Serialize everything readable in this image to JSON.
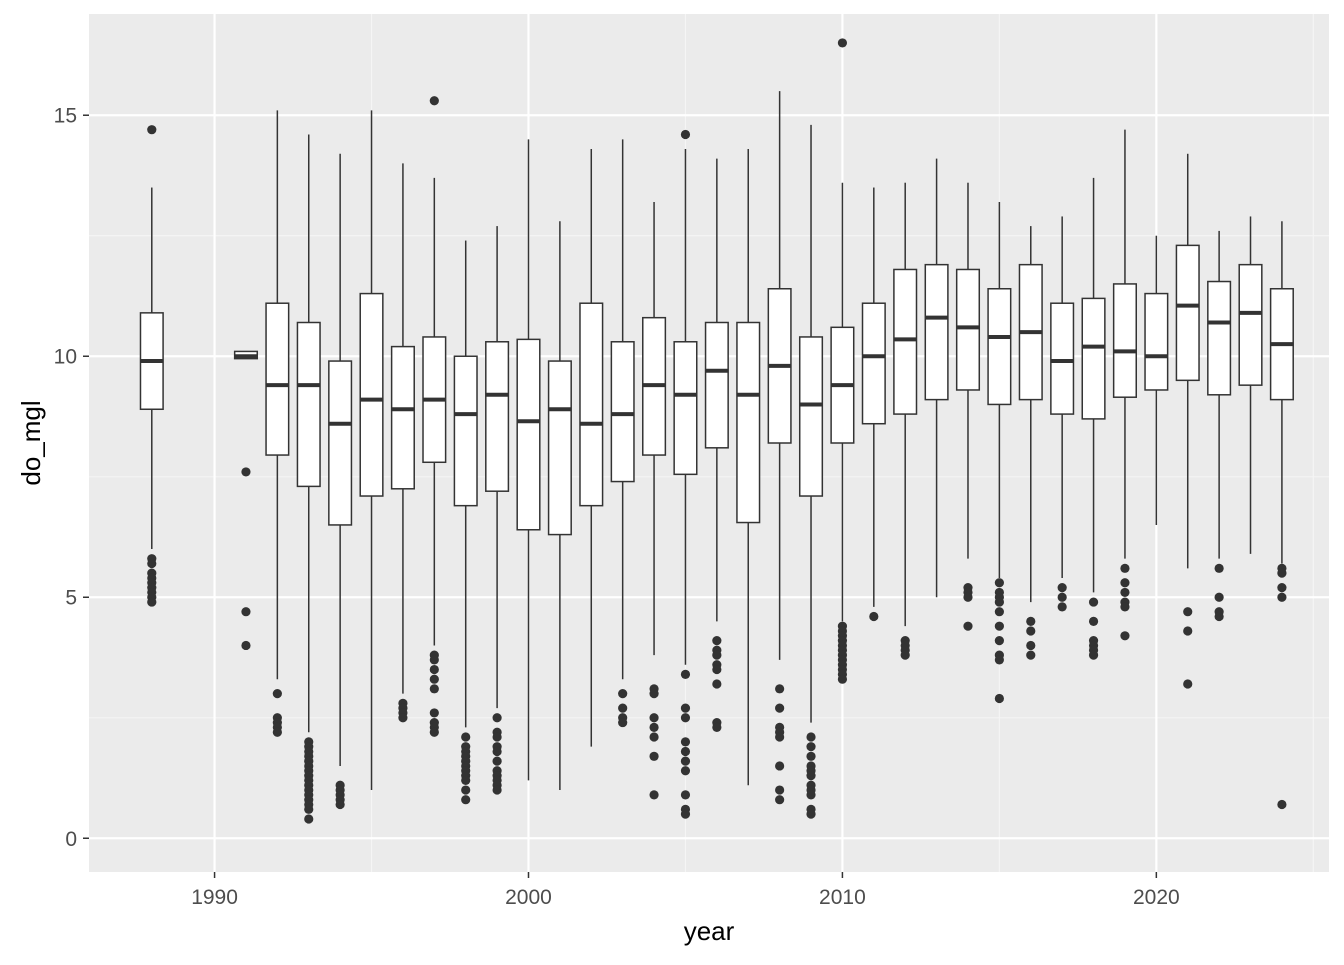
{
  "chart_data": {
    "type": "boxplot",
    "title": "",
    "xlabel": "year",
    "ylabel": "do_mgl",
    "xlim": [
      1986,
      2025.5
    ],
    "ylim": [
      -0.7,
      17.1
    ],
    "x_ticks": [
      1990,
      2000,
      2010,
      2020
    ],
    "y_ticks": [
      0,
      5,
      10,
      15
    ],
    "grid": true,
    "legend": "none",
    "colors": {
      "panel_background": "#ebebeb",
      "grid_major": "#ffffff",
      "grid_minor": "#f5f5f5",
      "box_fill": "#ffffff",
      "box_stroke": "#333333",
      "outlier": "#333333",
      "tick_label": "#4d4d4d",
      "axis_title": "#000000"
    },
    "boxes": [
      {
        "year": 1988,
        "min": 6.0,
        "q1": 8.9,
        "median": 9.9,
        "q3": 10.9,
        "max": 13.5,
        "outliers": [
          14.7,
          5.8,
          5.7,
          5.5,
          5.4,
          5.3,
          5.2,
          5.1,
          5.0,
          4.9
        ]
      },
      {
        "year": 1991,
        "min": 9.95,
        "q1": 9.95,
        "median": 10.0,
        "q3": 10.1,
        "max": 10.1,
        "outliers": [
          7.6,
          4.7,
          4.0
        ]
      },
      {
        "year": 1992,
        "min": 3.3,
        "q1": 7.95,
        "median": 9.4,
        "q3": 11.1,
        "max": 15.1,
        "outliers": [
          3.0,
          2.5,
          2.4,
          2.3,
          2.2
        ]
      },
      {
        "year": 1993,
        "min": 2.2,
        "q1": 7.3,
        "median": 9.4,
        "q3": 10.7,
        "max": 14.6,
        "outliers": [
          2.0,
          1.9,
          1.8,
          1.7,
          1.6,
          1.5,
          1.4,
          1.3,
          1.2,
          1.1,
          1.0,
          0.9,
          0.8,
          0.7,
          0.6,
          0.4
        ]
      },
      {
        "year": 1994,
        "min": 1.5,
        "q1": 6.5,
        "median": 8.6,
        "q3": 9.9,
        "max": 14.2,
        "outliers": [
          1.1,
          1.0,
          0.9,
          0.8,
          0.7
        ]
      },
      {
        "year": 1995,
        "min": 1.0,
        "q1": 7.1,
        "median": 9.1,
        "q3": 11.3,
        "max": 15.1,
        "outliers": []
      },
      {
        "year": 1996,
        "min": 3.0,
        "q1": 7.25,
        "median": 8.9,
        "q3": 10.2,
        "max": 14.0,
        "outliers": [
          2.8,
          2.7,
          2.6,
          2.5
        ]
      },
      {
        "year": 1997,
        "min": 4.0,
        "q1": 7.8,
        "median": 9.1,
        "q3": 10.4,
        "max": 13.7,
        "outliers": [
          15.3,
          3.8,
          3.7,
          3.5,
          3.3,
          3.1,
          2.6,
          2.4,
          2.3,
          2.2
        ]
      },
      {
        "year": 1998,
        "min": 2.3,
        "q1": 6.9,
        "median": 8.8,
        "q3": 10.0,
        "max": 12.4,
        "outliers": [
          2.1,
          1.9,
          1.8,
          1.7,
          1.6,
          1.5,
          1.4,
          1.3,
          1.2,
          1.0,
          0.8
        ]
      },
      {
        "year": 1999,
        "min": 2.7,
        "q1": 7.2,
        "median": 9.2,
        "q3": 10.3,
        "max": 12.7,
        "outliers": [
          2.5,
          2.2,
          2.1,
          1.9,
          1.8,
          1.6,
          1.4,
          1.3,
          1.2,
          1.1,
          1.0
        ]
      },
      {
        "year": 2000,
        "min": 1.2,
        "q1": 6.4,
        "median": 8.65,
        "q3": 10.35,
        "max": 14.5,
        "outliers": []
      },
      {
        "year": 2001,
        "min": 1.0,
        "q1": 6.3,
        "median": 8.9,
        "q3": 9.9,
        "max": 12.8,
        "outliers": []
      },
      {
        "year": 2002,
        "min": 1.9,
        "q1": 6.9,
        "median": 8.6,
        "q3": 11.1,
        "max": 14.3,
        "outliers": []
      },
      {
        "year": 2003,
        "min": 3.3,
        "q1": 7.4,
        "median": 8.8,
        "q3": 10.3,
        "max": 14.5,
        "outliers": [
          3.0,
          2.7,
          2.5,
          2.4
        ]
      },
      {
        "year": 2004,
        "min": 3.8,
        "q1": 7.95,
        "median": 9.4,
        "q3": 10.8,
        "max": 13.2,
        "outliers": [
          3.1,
          3.0,
          2.5,
          2.3,
          2.1,
          1.7,
          0.9
        ]
      },
      {
        "year": 2005,
        "min": 3.6,
        "q1": 7.55,
        "median": 9.2,
        "q3": 10.3,
        "max": 14.3,
        "outliers": [
          14.6,
          3.4,
          2.7,
          2.5,
          2.0,
          1.8,
          1.6,
          1.4,
          0.9,
          0.6,
          0.5
        ]
      },
      {
        "year": 2006,
        "min": 4.5,
        "q1": 8.1,
        "median": 9.7,
        "q3": 10.7,
        "max": 14.1,
        "outliers": [
          4.1,
          3.9,
          3.8,
          3.6,
          3.5,
          3.2,
          2.4,
          2.3
        ]
      },
      {
        "year": 2007,
        "min": 1.1,
        "q1": 6.55,
        "median": 9.2,
        "q3": 10.7,
        "max": 14.3,
        "outliers": []
      },
      {
        "year": 2008,
        "min": 3.7,
        "q1": 8.2,
        "median": 9.8,
        "q3": 11.4,
        "max": 15.5,
        "outliers": [
          3.1,
          2.7,
          2.3,
          2.2,
          2.1,
          1.5,
          1.0,
          0.8
        ]
      },
      {
        "year": 2009,
        "min": 2.4,
        "q1": 7.1,
        "median": 9.0,
        "q3": 10.4,
        "max": 14.8,
        "outliers": [
          2.1,
          1.9,
          1.7,
          1.5,
          1.4,
          1.3,
          1.1,
          1.0,
          0.9,
          0.6,
          0.5
        ]
      },
      {
        "year": 2010,
        "min": 4.5,
        "q1": 8.2,
        "median": 9.4,
        "q3": 10.6,
        "max": 13.6,
        "outliers": [
          16.5,
          4.4,
          4.3,
          4.2,
          4.1,
          4.0,
          3.9,
          3.8,
          3.7,
          3.6,
          3.5,
          3.4,
          3.3
        ]
      },
      {
        "year": 2011,
        "min": 4.8,
        "q1": 8.6,
        "median": 10.0,
        "q3": 11.1,
        "max": 13.5,
        "outliers": [
          4.6
        ]
      },
      {
        "year": 2012,
        "min": 4.4,
        "q1": 8.8,
        "median": 10.35,
        "q3": 11.8,
        "max": 13.6,
        "outliers": [
          4.1,
          4.0,
          3.9,
          3.8
        ]
      },
      {
        "year": 2013,
        "min": 5.0,
        "q1": 9.1,
        "median": 10.8,
        "q3": 11.9,
        "max": 14.1,
        "outliers": []
      },
      {
        "year": 2014,
        "min": 5.8,
        "q1": 9.3,
        "median": 10.6,
        "q3": 11.8,
        "max": 13.6,
        "outliers": [
          5.2,
          5.1,
          5.0,
          4.4
        ]
      },
      {
        "year": 2015,
        "min": 5.4,
        "q1": 9.0,
        "median": 10.4,
        "q3": 11.4,
        "max": 13.2,
        "outliers": [
          5.3,
          5.1,
          5.0,
          4.9,
          4.7,
          4.4,
          4.1,
          3.8,
          3.7,
          2.9
        ]
      },
      {
        "year": 2016,
        "min": 4.9,
        "q1": 9.1,
        "median": 10.5,
        "q3": 11.9,
        "max": 12.7,
        "outliers": [
          4.5,
          4.3,
          4.0,
          3.8
        ]
      },
      {
        "year": 2017,
        "min": 5.4,
        "q1": 8.8,
        "median": 9.9,
        "q3": 11.1,
        "max": 12.9,
        "outliers": [
          5.2,
          5.0,
          4.8
        ]
      },
      {
        "year": 2018,
        "min": 5.1,
        "q1": 8.7,
        "median": 10.2,
        "q3": 11.2,
        "max": 13.7,
        "outliers": [
          4.9,
          4.5,
          4.1,
          4.0,
          3.9,
          3.8
        ]
      },
      {
        "year": 2019,
        "min": 5.8,
        "q1": 9.15,
        "median": 10.1,
        "q3": 11.5,
        "max": 14.7,
        "outliers": [
          5.6,
          5.3,
          5.1,
          4.9,
          4.8,
          4.2
        ]
      },
      {
        "year": 2020,
        "min": 6.5,
        "q1": 9.3,
        "median": 10.0,
        "q3": 11.3,
        "max": 12.5,
        "outliers": []
      },
      {
        "year": 2021,
        "min": 5.6,
        "q1": 9.5,
        "median": 11.05,
        "q3": 12.3,
        "max": 14.2,
        "outliers": [
          4.7,
          4.3,
          3.2
        ]
      },
      {
        "year": 2022,
        "min": 5.8,
        "q1": 9.2,
        "median": 10.7,
        "q3": 11.55,
        "max": 12.6,
        "outliers": [
          5.6,
          5.0,
          4.7,
          4.6
        ]
      },
      {
        "year": 2023,
        "min": 5.9,
        "q1": 9.4,
        "median": 10.9,
        "q3": 11.9,
        "max": 12.9,
        "outliers": []
      },
      {
        "year": 2024,
        "min": 5.7,
        "q1": 9.1,
        "median": 10.25,
        "q3": 11.4,
        "max": 12.8,
        "outliers": [
          5.6,
          5.5,
          5.2,
          5.0,
          0.7
        ]
      }
    ]
  }
}
